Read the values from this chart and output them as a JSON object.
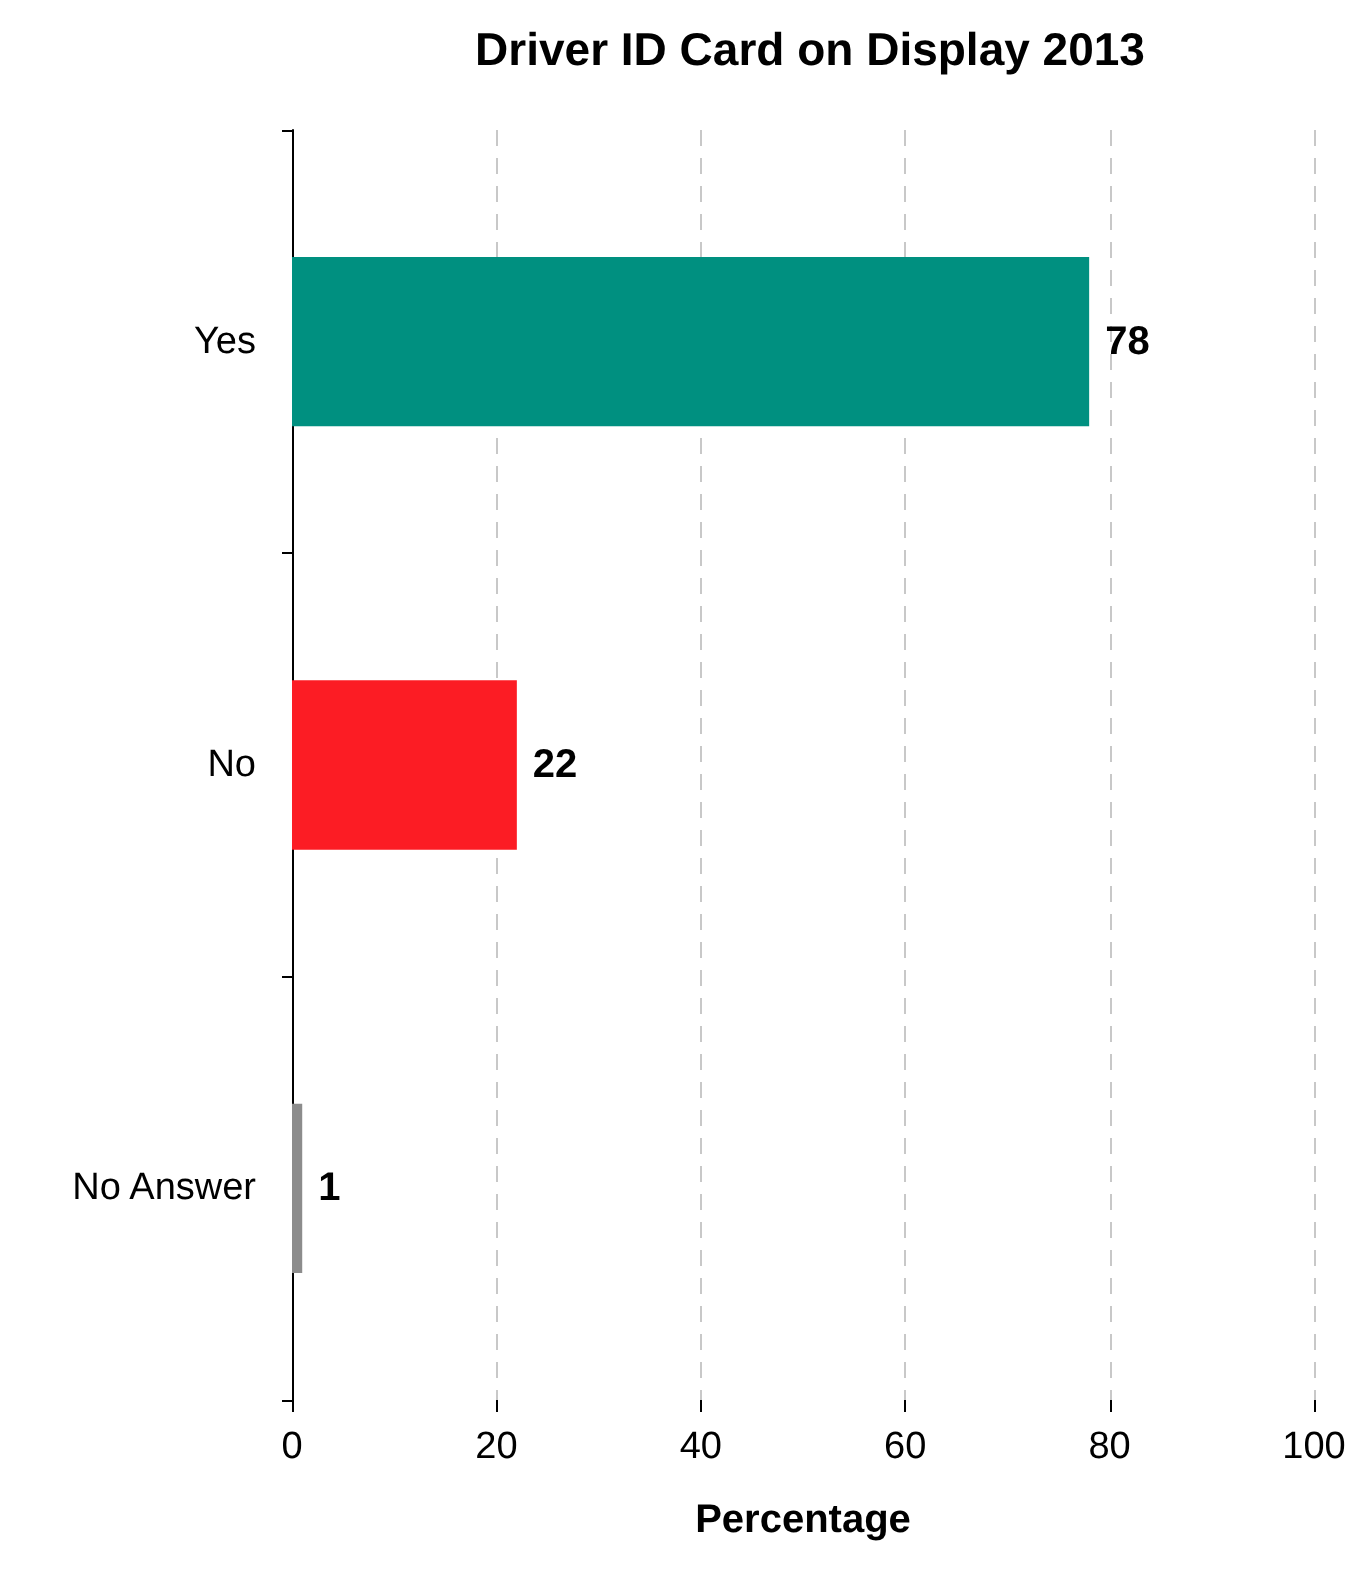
{
  "chart_data": {
    "type": "bar",
    "orientation": "horizontal",
    "title": "Driver ID Card on Display 2013",
    "xlabel": "Percentage",
    "categories": [
      "Yes",
      "No",
      "No Answer"
    ],
    "values": [
      78,
      22,
      1
    ],
    "colors": [
      "#009080",
      "#fc1c24",
      "#8c8c8c"
    ],
    "xlim": [
      0,
      100
    ],
    "xticks": [
      0,
      20,
      40,
      60,
      80,
      100
    ],
    "grid": "x",
    "data_labels": true
  }
}
